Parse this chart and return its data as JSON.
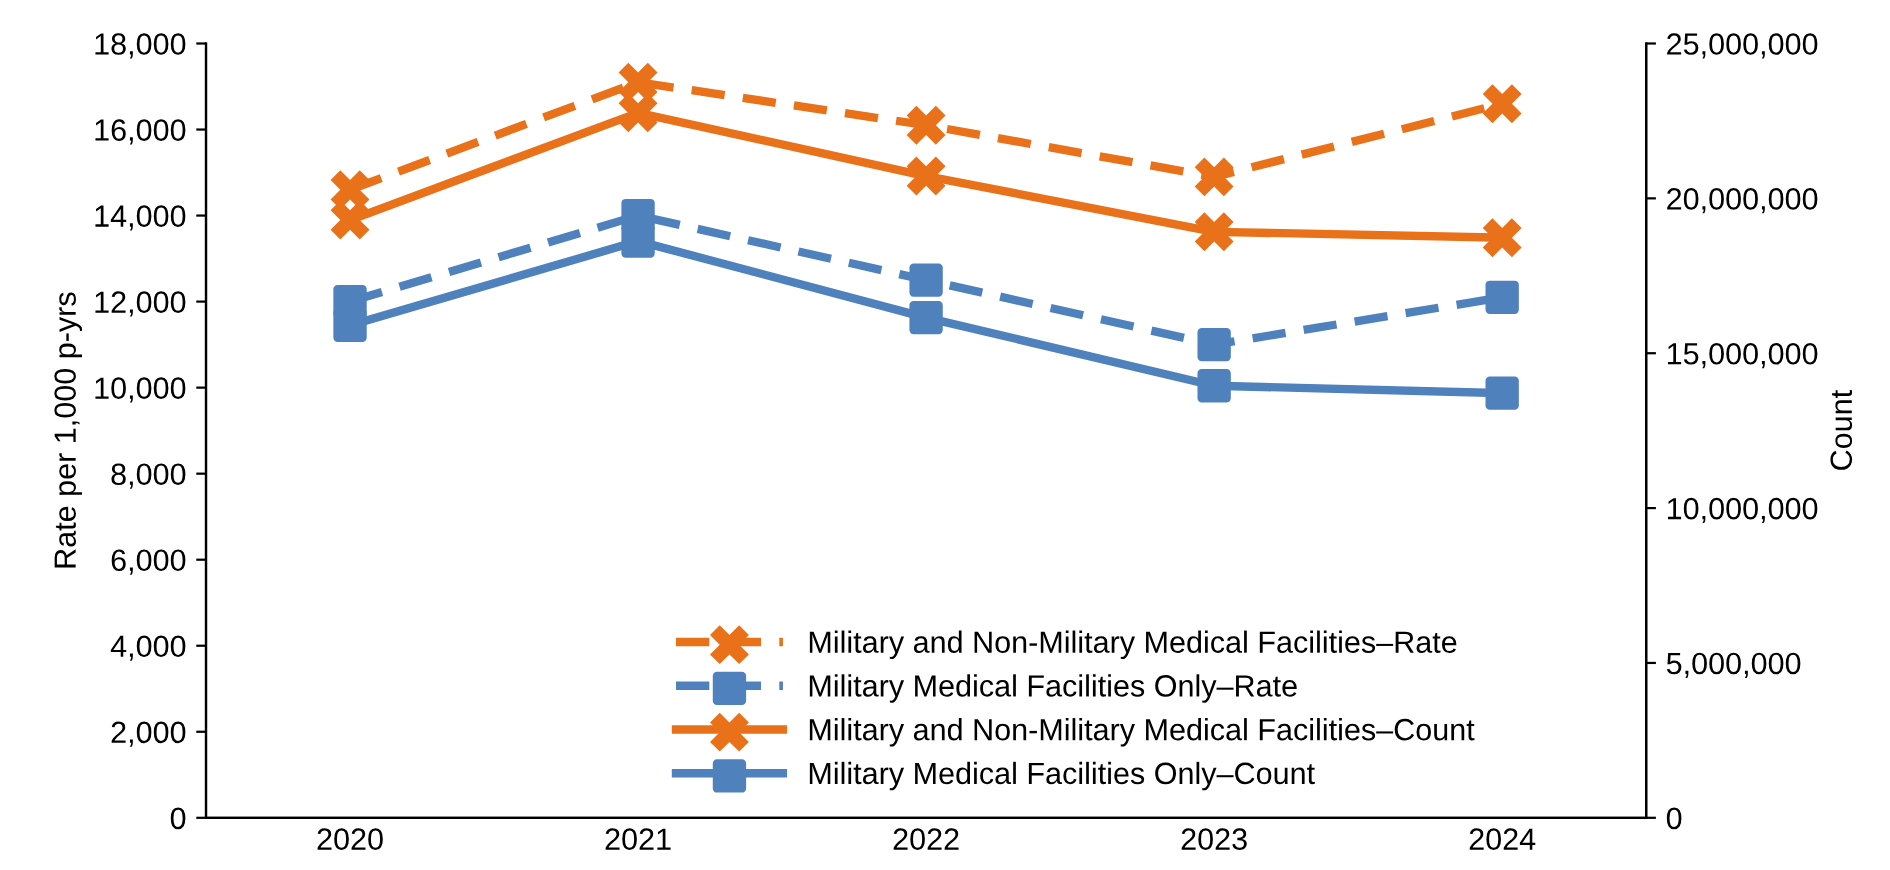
{
  "chart_data": {
    "type": "line",
    "categories": [
      "2020",
      "2021",
      "2022",
      "2023",
      "2024"
    ],
    "ylabel": "Rate per 1,000 p-yrs",
    "y2label": "Count",
    "ylim": [
      0,
      18000
    ],
    "yticks": [
      {
        "value": 0,
        "label": "0"
      },
      {
        "value": 2000,
        "label": "2,000"
      },
      {
        "value": 4000,
        "label": "4,000"
      },
      {
        "value": 6000,
        "label": "6,000"
      },
      {
        "value": 8000,
        "label": "8,000"
      },
      {
        "value": 10000,
        "label": "10,000"
      },
      {
        "value": 12000,
        "label": "12,000"
      },
      {
        "value": 14000,
        "label": "14,000"
      },
      {
        "value": 16000,
        "label": "16,000"
      },
      {
        "value": 18000,
        "label": "18,000"
      }
    ],
    "y2lim": [
      0,
      25000000
    ],
    "y2ticks": [
      {
        "value": 0,
        "label": "0"
      },
      {
        "value": 5000000,
        "label": "5,000,000"
      },
      {
        "value": 10000000,
        "label": "10,000,000"
      },
      {
        "value": 15000000,
        "label": "15,000,000"
      },
      {
        "value": 20000000,
        "label": "20,000,000"
      },
      {
        "value": 25000000,
        "label": "25,000,000"
      }
    ],
    "grid": false,
    "legend": "bottom right",
    "series": [
      {
        "name": "Military and Non-Military Medical Facilities–Rate",
        "color": "#e8711a",
        "marker": "cross",
        "line_style": "dashed",
        "values": [
          14600,
          17100,
          16100,
          14900,
          16600
        ]
      },
      {
        "name": "Military Medical Facilities Only–Rate",
        "color": "#4f81bd",
        "marker": "square",
        "line_style": "dashed",
        "values": [
          12000,
          14000,
          12500,
          11000,
          12100
        ]
      },
      {
        "name": "Military and Non-Military Medical Facilities–Count",
        "color": "#e8711a",
        "marker": "cross",
        "line_style": "solid",
        "axis": "y2",
        "values": [
          19300000,
          22760000,
          20720000,
          18920000,
          18730000
        ]
      },
      {
        "name": "Military Medical Facilities Only–Count",
        "color": "#4f81bd",
        "marker": "square",
        "line_style": "solid",
        "axis": "y2",
        "values": [
          15900000,
          18620000,
          16150000,
          13950000,
          13710000
        ]
      }
    ]
  }
}
